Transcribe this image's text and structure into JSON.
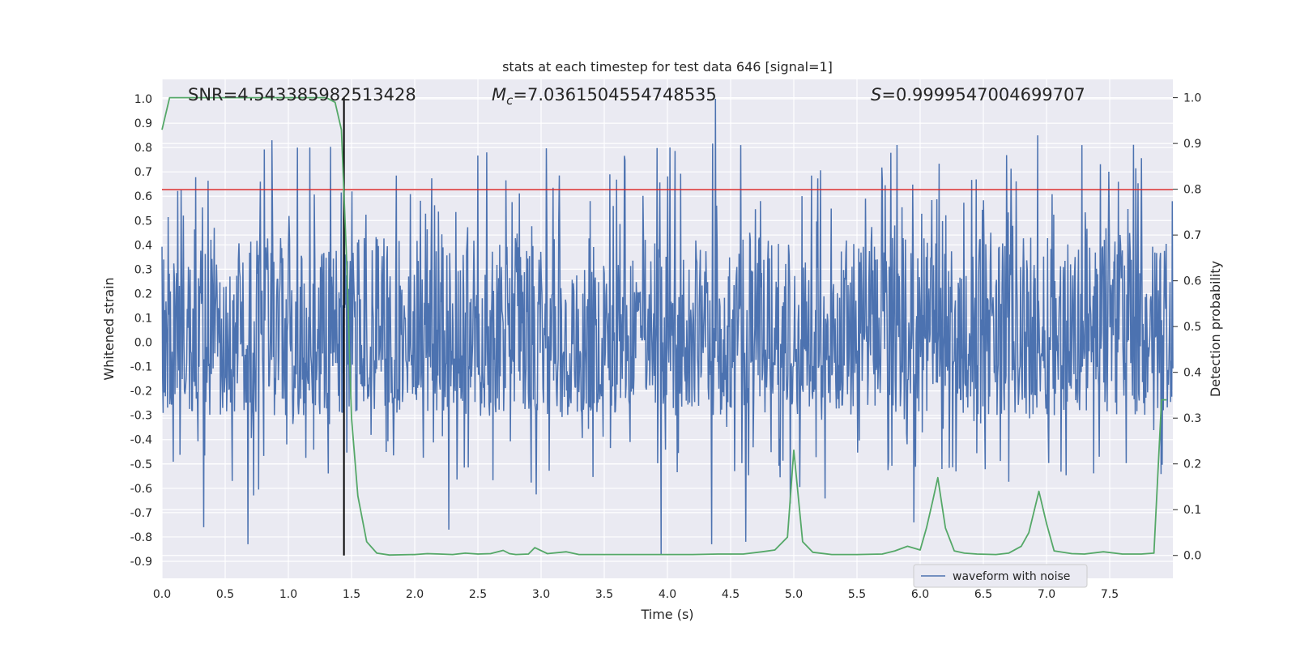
{
  "chart_data": {
    "type": "line",
    "title": "stats at each timestep for test data 646 [signal=1]",
    "xlabel": "Time (s)",
    "ylabel": "Whitened strain",
    "y2label": "Detection probability",
    "xlim": [
      0,
      8.0
    ],
    "ylim": [
      -0.97,
      1.08
    ],
    "y2lim": [
      -0.05,
      1.04
    ],
    "xticks": [
      "0.0",
      "0.5",
      "1.0",
      "1.5",
      "2.0",
      "2.5",
      "3.0",
      "3.5",
      "4.0",
      "4.5",
      "5.0",
      "5.5",
      "6.0",
      "6.5",
      "7.0",
      "7.5"
    ],
    "yticks": [
      "-0.9",
      "-0.8",
      "-0.7",
      "-0.6",
      "-0.5",
      "-0.4",
      "-0.3",
      "-0.2",
      "-0.1",
      "0.0",
      "0.1",
      "0.2",
      "0.3",
      "0.4",
      "0.5",
      "0.6",
      "0.7",
      "0.8",
      "0.9",
      "1.0"
    ],
    "y2ticks": [
      "0.0",
      "0.1",
      "0.2",
      "0.3",
      "0.4",
      "0.5",
      "0.6",
      "0.7",
      "0.8",
      "0.9",
      "1.0"
    ],
    "grid": true,
    "legend": {
      "position": "lower-right",
      "entries": [
        "waveform with noise"
      ]
    },
    "annotations": {
      "snr": "SNR=4.543385982513428",
      "mc_symbol": "M",
      "mc_sub": "c",
      "mc_value": "=7.0361504554748535",
      "s_symbol": "S",
      "s_value": "=0.9999547004699707"
    },
    "threshold_line": {
      "axis": "y1",
      "value": 0.627,
      "color": "#d62728"
    },
    "event_line": {
      "axis": "x",
      "value": 1.44,
      "color": "#000000"
    },
    "waveform": {
      "name": "waveform with noise",
      "color": "#4c72b0",
      "typical_band": [
        -0.3,
        0.43
      ],
      "peaks": [
        {
          "x": 0.87,
          "y": 0.83
        },
        {
          "x": 1.17,
          "y": 0.8
        },
        {
          "x": 1.44,
          "y": 0.75
        },
        {
          "x": 2.57,
          "y": 0.78
        },
        {
          "x": 4.38,
          "y": 1.0
        },
        {
          "x": 4.58,
          "y": 0.81
        },
        {
          "x": 6.93,
          "y": 0.85
        },
        {
          "x": 7.28,
          "y": 0.81
        },
        {
          "x": 0.68,
          "y": -0.83
        },
        {
          "x": 0.33,
          "y": -0.76
        },
        {
          "x": 2.27,
          "y": -0.77
        },
        {
          "x": 3.95,
          "y": -0.87
        },
        {
          "x": 4.35,
          "y": -0.83
        },
        {
          "x": 4.62,
          "y": -0.82
        },
        {
          "x": 5.95,
          "y": -0.74
        }
      ]
    },
    "series": [
      {
        "axis": "y2",
        "color": "#55a868",
        "x": [
          0.0,
          0.06,
          0.2,
          0.4,
          0.6,
          0.8,
          1.0,
          1.2,
          1.3,
          1.37,
          1.42,
          1.46,
          1.5,
          1.55,
          1.62,
          1.7,
          1.8,
          2.0,
          2.1,
          2.2,
          2.3,
          2.4,
          2.5,
          2.6,
          2.7,
          2.75,
          2.8,
          2.9,
          2.95,
          3.05,
          3.2,
          3.3,
          3.5,
          3.8,
          4.0,
          4.2,
          4.4,
          4.6,
          4.75,
          4.85,
          4.95,
          5.0,
          5.07,
          5.15,
          5.3,
          5.5,
          5.7,
          5.8,
          5.9,
          6.0,
          6.05,
          6.1,
          6.14,
          6.2,
          6.27,
          6.35,
          6.45,
          6.6,
          6.7,
          6.8,
          6.86,
          6.94,
          7.0,
          7.06,
          7.2,
          7.3,
          7.45,
          7.6,
          7.75,
          7.85,
          7.91,
          7.95
        ],
        "y": [
          0.93,
          1.0,
          1.0,
          1.0,
          1.0,
          1.0,
          1.0,
          1.0,
          1.0,
          0.99,
          0.93,
          0.65,
          0.3,
          0.13,
          0.03,
          0.005,
          0.001,
          0.002,
          0.004,
          0.003,
          0.002,
          0.005,
          0.003,
          0.004,
          0.011,
          0.004,
          0.002,
          0.003,
          0.017,
          0.004,
          0.008,
          0.002,
          0.002,
          0.002,
          0.002,
          0.002,
          0.003,
          0.003,
          0.008,
          0.012,
          0.04,
          0.23,
          0.03,
          0.007,
          0.002,
          0.002,
          0.003,
          0.01,
          0.02,
          0.012,
          0.06,
          0.12,
          0.17,
          0.06,
          0.01,
          0.005,
          0.003,
          0.002,
          0.005,
          0.02,
          0.05,
          0.14,
          0.07,
          0.01,
          0.004,
          0.003,
          0.008,
          0.003,
          0.003,
          0.005,
          0.34,
          0.34
        ]
      }
    ]
  }
}
